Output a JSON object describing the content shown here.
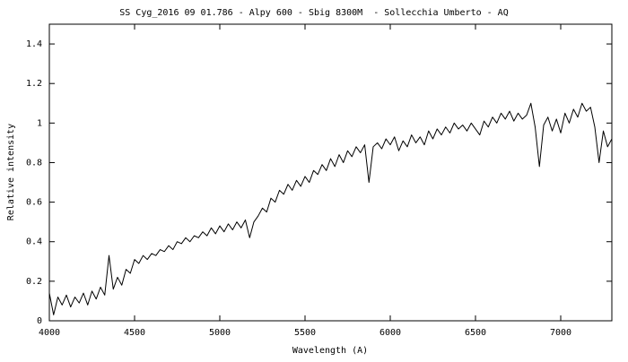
{
  "chart_data": {
    "type": "line",
    "title": "SS Cyg_2016 09 01.786 - Alpy 600 - Sbig 8300M  - Sollecchia Umberto - AQ",
    "x_label": "Wavelength (A)",
    "y_label": "Relative intensity",
    "color": "#000000",
    "xlim": [
      4000,
      7300
    ],
    "ylim": [
      0,
      1.5
    ],
    "xticks": [
      4000,
      4500,
      5000,
      5500,
      6000,
      6500,
      7000
    ],
    "yticks": [
      0,
      0.2,
      0.4,
      0.6,
      0.8,
      1,
      1.2,
      1.4
    ],
    "x": [
      4000,
      4025,
      4050,
      4075,
      4100,
      4125,
      4150,
      4175,
      4200,
      4225,
      4250,
      4275,
      4300,
      4325,
      4350,
      4375,
      4400,
      4425,
      4450,
      4475,
      4500,
      4525,
      4550,
      4575,
      4600,
      4625,
      4650,
      4675,
      4700,
      4725,
      4750,
      4775,
      4800,
      4825,
      4850,
      4875,
      4900,
      4925,
      4950,
      4975,
      5000,
      5025,
      5050,
      5075,
      5100,
      5125,
      5150,
      5175,
      5200,
      5225,
      5250,
      5275,
      5300,
      5325,
      5350,
      5375,
      5400,
      5425,
      5450,
      5475,
      5500,
      5525,
      5550,
      5575,
      5600,
      5625,
      5650,
      5675,
      5700,
      5725,
      5750,
      5775,
      5800,
      5825,
      5850,
      5875,
      5900,
      5925,
      5950,
      5975,
      6000,
      6025,
      6050,
      6075,
      6100,
      6125,
      6150,
      6175,
      6200,
      6225,
      6250,
      6275,
      6300,
      6325,
      6350,
      6375,
      6400,
      6425,
      6450,
      6475,
      6500,
      6525,
      6550,
      6575,
      6600,
      6625,
      6650,
      6675,
      6700,
      6725,
      6750,
      6775,
      6800,
      6825,
      6850,
      6875,
      6900,
      6925,
      6950,
      6975,
      7000,
      7025,
      7050,
      7075,
      7100,
      7125,
      7150,
      7175,
      7200,
      7225,
      7250,
      7275,
      7300
    ],
    "values": [
      0.14,
      0.03,
      0.12,
      0.08,
      0.13,
      0.07,
      0.12,
      0.09,
      0.14,
      0.08,
      0.15,
      0.11,
      0.17,
      0.13,
      0.33,
      0.16,
      0.22,
      0.18,
      0.26,
      0.24,
      0.31,
      0.29,
      0.33,
      0.31,
      0.34,
      0.33,
      0.36,
      0.35,
      0.38,
      0.36,
      0.4,
      0.39,
      0.42,
      0.4,
      0.43,
      0.42,
      0.45,
      0.43,
      0.47,
      0.44,
      0.48,
      0.45,
      0.49,
      0.46,
      0.5,
      0.47,
      0.51,
      0.42,
      0.5,
      0.53,
      0.57,
      0.55,
      0.62,
      0.6,
      0.66,
      0.64,
      0.69,
      0.66,
      0.71,
      0.68,
      0.73,
      0.7,
      0.76,
      0.74,
      0.79,
      0.76,
      0.82,
      0.78,
      0.84,
      0.8,
      0.86,
      0.83,
      0.88,
      0.85,
      0.89,
      0.7,
      0.88,
      0.9,
      0.87,
      0.92,
      0.89,
      0.93,
      0.86,
      0.91,
      0.88,
      0.94,
      0.9,
      0.93,
      0.89,
      0.96,
      0.92,
      0.97,
      0.94,
      0.98,
      0.95,
      1.0,
      0.97,
      0.99,
      0.96,
      1.0,
      0.97,
      0.94,
      1.01,
      0.98,
      1.03,
      1.0,
      1.05,
      1.02,
      1.06,
      1.01,
      1.05,
      1.02,
      1.04,
      1.1,
      0.98,
      0.78,
      0.99,
      1.03,
      0.96,
      1.02,
      0.95,
      1.05,
      1.0,
      1.07,
      1.03,
      1.1,
      1.06,
      1.08,
      0.98,
      0.8,
      0.96,
      0.88,
      0.92
    ]
  }
}
